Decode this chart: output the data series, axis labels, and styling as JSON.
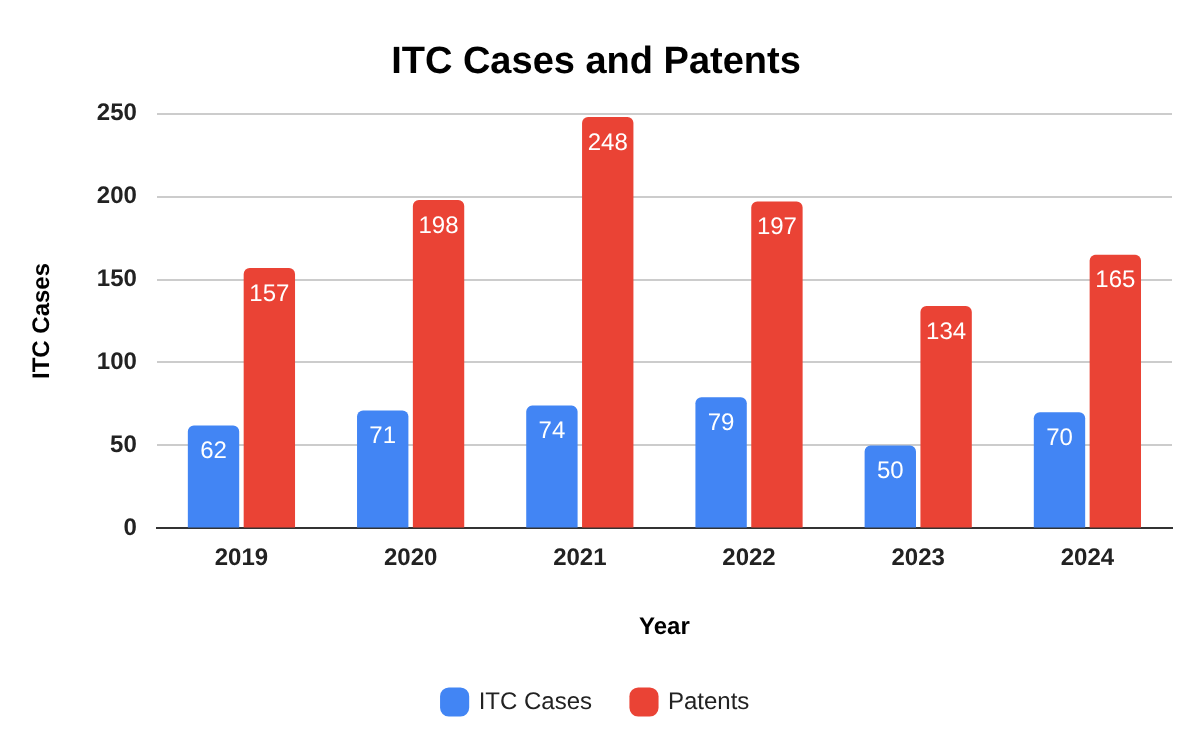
{
  "chart_data": {
    "type": "bar",
    "title": "ITC Cases and Patents",
    "xlabel": "Year",
    "ylabel": "ITC Cases",
    "categories": [
      "2019",
      "2020",
      "2021",
      "2022",
      "2023",
      "2024"
    ],
    "series": [
      {
        "name": "ITC Cases",
        "color": "#4285f4",
        "values": [
          62,
          71,
          74,
          79,
          50,
          70
        ]
      },
      {
        "name": "Patents",
        "color": "#ea4335",
        "values": [
          157,
          198,
          248,
          197,
          134,
          165
        ]
      }
    ],
    "ylim": [
      0,
      250
    ],
    "yticks": [
      0,
      50,
      100,
      150,
      200,
      250
    ],
    "grid": "y",
    "legend": "bottom",
    "data_labels": true
  }
}
